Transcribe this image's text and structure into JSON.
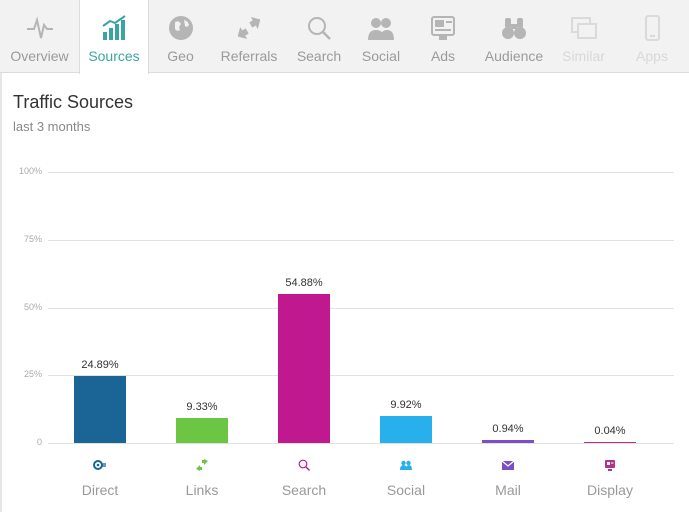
{
  "tabs": [
    {
      "label": "Overview",
      "icon": "pulse-icon",
      "state": "normal"
    },
    {
      "label": "Sources",
      "icon": "bar-chart-icon",
      "state": "active"
    },
    {
      "label": "Geo",
      "icon": "globe-icon",
      "state": "normal"
    },
    {
      "label": "Referrals",
      "icon": "arrows-icon",
      "state": "normal"
    },
    {
      "label": "Search",
      "icon": "magnifier-icon",
      "state": "normal"
    },
    {
      "label": "Social",
      "icon": "people-icon",
      "state": "normal"
    },
    {
      "label": "Ads",
      "icon": "ads-icon",
      "state": "normal"
    },
    {
      "label": "Audience",
      "icon": "binoculars-icon",
      "state": "normal"
    },
    {
      "label": "Similar",
      "icon": "windows-icon",
      "state": "disabled"
    },
    {
      "label": "Apps",
      "icon": "phone-icon",
      "state": "disabled"
    }
  ],
  "section": {
    "title": "Traffic Sources",
    "subtitle": "last 3 months"
  },
  "chart_data": {
    "type": "bar",
    "categories": [
      "Direct",
      "Links",
      "Search",
      "Social",
      "Mail",
      "Display"
    ],
    "values": [
      24.89,
      9.33,
      54.88,
      9.92,
      0.94,
      0.04
    ],
    "value_labels": [
      "24.89%",
      "9.33%",
      "54.88%",
      "9.92%",
      "0.94%",
      "0.04%"
    ],
    "colors": [
      "#1a6496",
      "#6cc644",
      "#c0188e",
      "#27b0eb",
      "#7c4fc4",
      "#b2308f"
    ],
    "category_icons": [
      "direct-icon",
      "links-icon",
      "search-icon",
      "social-icon",
      "mail-icon",
      "display-icon"
    ],
    "yticks": [
      "100%",
      "75%",
      "50%",
      "25%",
      "0"
    ],
    "ylim": [
      0,
      100
    ],
    "grid": true
  }
}
